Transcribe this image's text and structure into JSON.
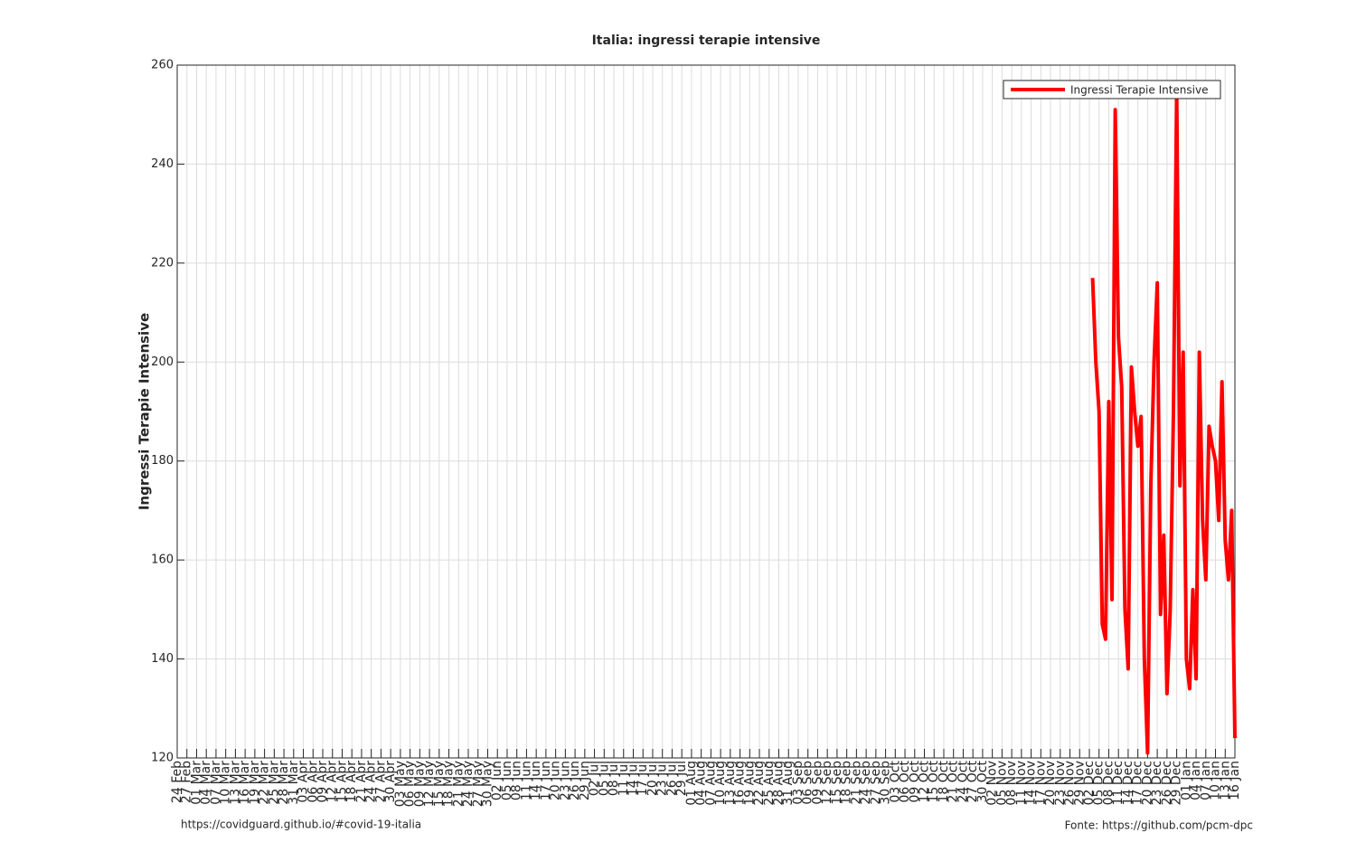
{
  "chart_data": {
    "type": "line",
    "title": "Italia: ingressi terapie intensive",
    "ylabel": "Ingressi Terapie Intensive",
    "footer_left": "https://covidguard.github.io/#covid-19-italia",
    "footer_right": "Fonte: https://github.com/pcm-dpc",
    "legend_position": "upper right",
    "grid": true,
    "xlim": [
      "24 Feb",
      "16 Jan"
    ],
    "xticks": [
      "24 Feb",
      "27 Feb",
      "01 Mar",
      "04 Mar",
      "07 Mar",
      "10 Mar",
      "13 Mar",
      "16 Mar",
      "19 Mar",
      "22 Mar",
      "25 Mar",
      "28 Mar",
      "31 Mar",
      "03 Apr",
      "06 Apr",
      "09 Apr",
      "12 Apr",
      "15 Apr",
      "18 Apr",
      "21 Apr",
      "24 Apr",
      "27 Apr",
      "30 Apr",
      "03 May",
      "06 May",
      "09 May",
      "12 May",
      "15 May",
      "18 May",
      "21 May",
      "24 May",
      "27 May",
      "30 May",
      "02 Jun",
      "05 Jun",
      "08 Jun",
      "11 Jun",
      "14 Jun",
      "17 Jun",
      "20 Jun",
      "23 Jun",
      "26 Jun",
      "29 Jun",
      "02 Jul",
      "05 Jul",
      "08 Jul",
      "11 Jul",
      "14 Jul",
      "17 Jul",
      "20 Jul",
      "23 Jul",
      "26 Jul",
      "29 Jul",
      "01 Aug",
      "04 Aug",
      "07 Aug",
      "10 Aug",
      "13 Aug",
      "16 Aug",
      "19 Aug",
      "22 Aug",
      "25 Aug",
      "28 Aug",
      "31 Aug",
      "03 Sep",
      "06 Sep",
      "09 Sep",
      "12 Sep",
      "15 Sep",
      "18 Sep",
      "21 Sep",
      "24 Sep",
      "27 Sep",
      "30 Sep",
      "03 Oct",
      "06 Oct",
      "09 Oct",
      "12 Oct",
      "15 Oct",
      "18 Oct",
      "21 Oct",
      "24 Oct",
      "27 Oct",
      "30 Oct",
      "02 Nov",
      "05 Nov",
      "08 Nov",
      "11 Nov",
      "14 Nov",
      "17 Nov",
      "20 Nov",
      "23 Nov",
      "26 Nov",
      "29 Nov",
      "02 Dec",
      "05 Dec",
      "08 Dec",
      "11 Dec",
      "14 Dec",
      "17 Dec",
      "20 Dec",
      "23 Dec",
      "26 Dec",
      "29 Dec",
      "01 Jan",
      "04 Jan",
      "07 Jan",
      "10 Jan",
      "13 Jan",
      "16 Jan"
    ],
    "ylim": [
      120,
      260
    ],
    "yticks": [
      120,
      140,
      160,
      180,
      200,
      220,
      240,
      260
    ],
    "x": [
      "03 Dec",
      "04 Dec",
      "05 Dec",
      "06 Dec",
      "07 Dec",
      "08 Dec",
      "09 Dec",
      "10 Dec",
      "11 Dec",
      "12 Dec",
      "13 Dec",
      "14 Dec",
      "15 Dec",
      "16 Dec",
      "17 Dec",
      "18 Dec",
      "19 Dec",
      "20 Dec",
      "21 Dec",
      "22 Dec",
      "23 Dec",
      "24 Dec",
      "25 Dec",
      "26 Dec",
      "27 Dec",
      "28 Dec",
      "29 Dec",
      "30 Dec",
      "31 Dec",
      "01 Jan",
      "02 Jan",
      "03 Jan",
      "04 Jan",
      "05 Jan",
      "06 Jan",
      "07 Jan",
      "08 Jan",
      "09 Jan",
      "10 Jan",
      "11 Jan",
      "12 Jan",
      "13 Jan",
      "14 Jan",
      "15 Jan",
      "16 Jan"
    ],
    "series": [
      {
        "name": "Ingressi Terapie Intensive",
        "color": "#ff0000",
        "values": [
          217,
          200,
          190,
          147,
          144,
          192,
          152,
          251,
          205,
          195,
          150,
          138,
          199,
          190,
          183,
          189,
          140,
          121,
          175,
          200,
          216,
          149,
          165,
          133,
          150,
          190,
          255,
          175,
          202,
          140,
          134,
          154,
          136,
          202,
          168,
          156,
          187,
          183,
          180,
          168,
          196,
          164,
          156,
          170,
          124
        ]
      }
    ]
  }
}
